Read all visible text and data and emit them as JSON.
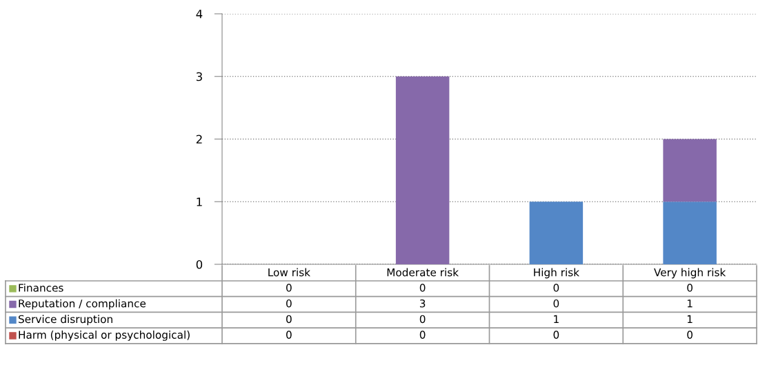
{
  "chart_data": {
    "type": "bar",
    "stacked": true,
    "categories": [
      "Low risk",
      "Moderate risk",
      "High risk",
      "Very high risk"
    ],
    "series": [
      {
        "name": "Harm (physical or psychological)",
        "color": "#c0504d",
        "values": [
          0,
          0,
          0,
          0
        ],
        "value_labels": [
          "0",
          "0",
          "0",
          "0"
        ]
      },
      {
        "name": "Service disruption",
        "color": "#5387c7",
        "values": [
          0,
          0,
          1,
          1
        ],
        "value_labels": [
          "0",
          "0",
          "1",
          "1"
        ]
      },
      {
        "name": "Reputation / compliance",
        "color": "#8669aa",
        "values": [
          0,
          3,
          0,
          1
        ],
        "value_labels": [
          "0",
          "3",
          "0",
          "1"
        ]
      },
      {
        "name": "Finances",
        "color": "#9bbb59",
        "values": [
          0,
          0,
          0,
          0
        ],
        "value_labels": [
          "0",
          "0",
          "0",
          "0"
        ]
      }
    ],
    "ylim": [
      0,
      4
    ],
    "yticks": [
      0,
      1,
      2,
      3,
      4
    ],
    "grid": "y",
    "legend": "bottom left"
  }
}
